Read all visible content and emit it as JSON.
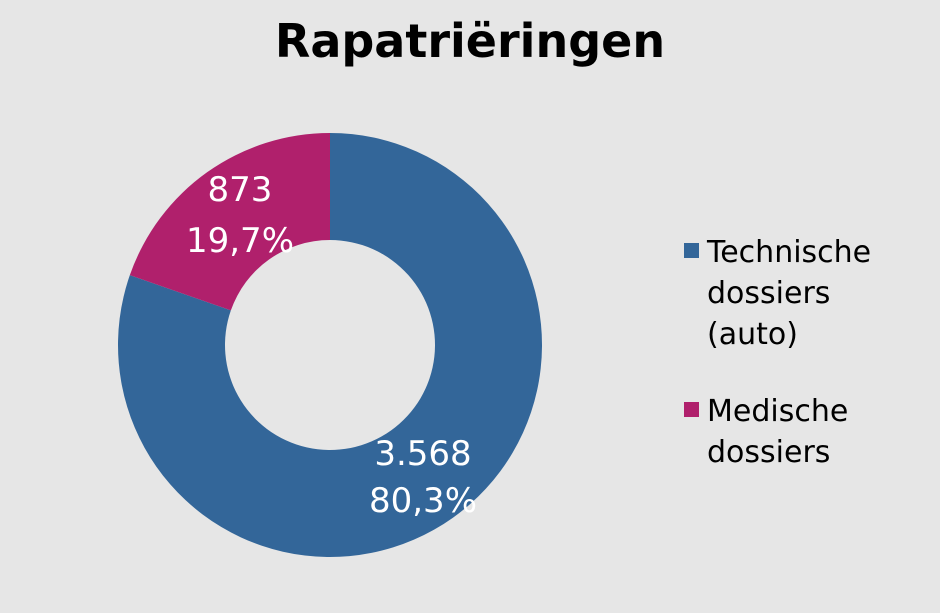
{
  "chart_data": {
    "type": "pie",
    "title": "Rapatriëringen",
    "legend_position": "right",
    "donut": true,
    "slices": [
      {
        "name": "Technische\ndossiers\n(auto)",
        "value": 3568,
        "value_label": "3.568",
        "percent_label": "80,3%",
        "color": "#336699"
      },
      {
        "name": "Medische\ndossiers",
        "value": 873,
        "value_label": "873",
        "percent_label": "19,7%",
        "color": "#b0206c"
      }
    ]
  }
}
